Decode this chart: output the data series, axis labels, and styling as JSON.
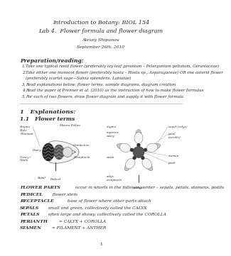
{
  "title_line1": "Introduction to Botany: BIOL 154",
  "title_line2": "Lab 4.  Flower formula and flower diagram",
  "author": "Alexey Shipunov",
  "date": "September 26th, 2010",
  "section_prep": "Preparation/reading:",
  "prep_items": [
    "Take one typical rosid flower (preferably ivy-leaf geranium – Pelargonium peltatum, Geraniaceae)",
    "Take either one monocot flower (preferably hosta – Hosta sp., Asparagaceae) OR one asterid flower (preferably scarlet sage—Salvia splendens, Labiatae)",
    "Read explanations below: flower terms, sample diagrams, diagram creation",
    "Read the paper of Prenner et al. (2010) as the instruction of how to make flower formulas",
    "For each of two flowers, draw flower diagram and supply it with flower formula"
  ],
  "section1": "1   Explanations:",
  "section11": "1.1   Flower terms",
  "definitions": [
    [
      "FLOWER PARTS",
      " occur in whorls in the following order – sepals, petals, stamens, pistils"
    ],
    [
      "PEDICEL",
      " flower stem"
    ],
    [
      "RECEPTACLE",
      " base of flower where other parts attach"
    ],
    [
      "SEPALS",
      " small and green, collectively called the CALYX"
    ],
    [
      "PETALS",
      " often large and showy, collectively called the COROLLA"
    ],
    [
      "PERIANTH",
      " = CALYX + COROLLA"
    ],
    [
      "STAMEN",
      " = FILAMENT + ANTHER"
    ]
  ],
  "page_num": "1",
  "bg_color": "#ffffff",
  "text_color": "#2a2a2a"
}
